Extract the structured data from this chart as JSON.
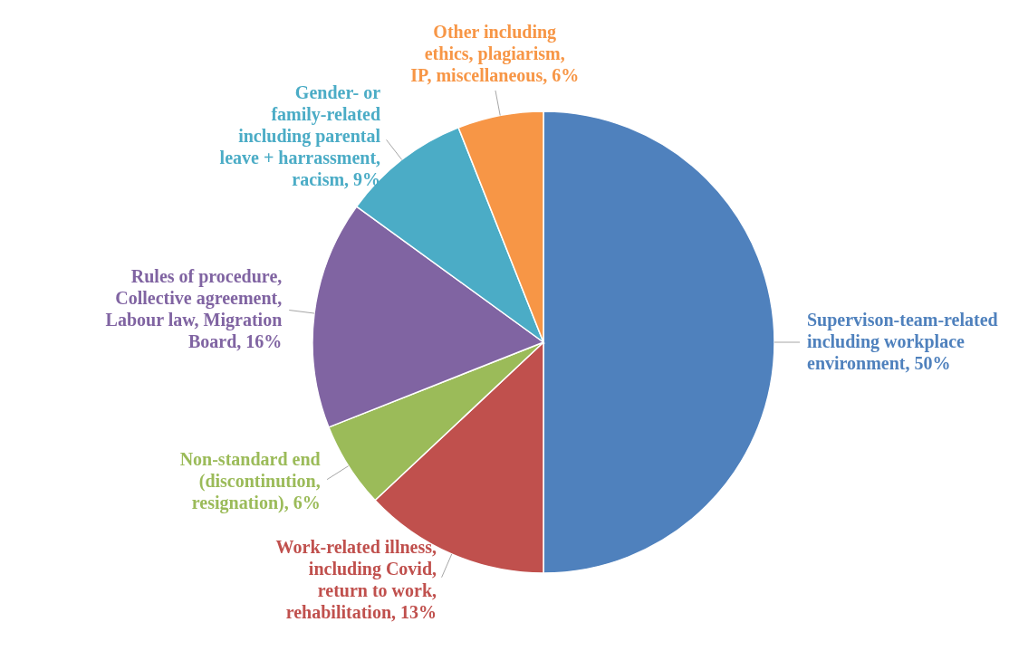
{
  "chart_data": {
    "type": "pie",
    "categories": [
      "Supervison-team-related including workplace environment",
      "Work-related illness, including Covid, return to work, rehabilitation",
      "Non-standard end (discontinution, resignation)",
      "Rules of procedure, Collective agreement, Labour law, Migration Board",
      "Gender- or family-related including parental leave + harrassment, racism",
      "Other including ethics, plagiarism, IP, miscellaneous"
    ],
    "values": [
      50,
      13,
      6,
      16,
      9,
      6
    ],
    "colors": [
      "#4f81bd",
      "#c0504d",
      "#9bbb59",
      "#8064a2",
      "#4bacc6",
      "#f79646"
    ],
    "value_labels": [
      "50%",
      "13%",
      "6%",
      "16%",
      "9%",
      "6%"
    ]
  }
}
